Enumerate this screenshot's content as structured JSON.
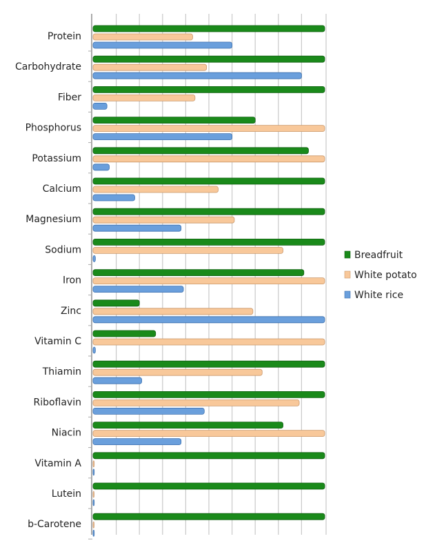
{
  "chart_data": {
    "type": "bar",
    "orientation": "horizontal",
    "title": "",
    "xlabel": "",
    "ylabel": "",
    "xlim": [
      0,
      100
    ],
    "grid": true,
    "legend_position": "right",
    "categories": [
      "Protein",
      "Carbohydrate",
      "Fiber",
      "Phosphorus",
      "Potassium",
      "Calcium",
      "Magnesium",
      "Sodium",
      "Iron",
      "Zinc",
      "Vitamin C",
      "Thiamin",
      "Riboflavin",
      "Niacin",
      "Vitamin A",
      "Lutein",
      "b-Carotene"
    ],
    "series": [
      {
        "name": "Breadfruit",
        "color": "#1a8a1a",
        "values": [
          100,
          100,
          100,
          70,
          93,
          100,
          100,
          100,
          91,
          20,
          27,
          100,
          100,
          82,
          100,
          100,
          100
        ]
      },
      {
        "name": "White potato",
        "color": "#f8c89a",
        "values": [
          43,
          49,
          44,
          100,
          100,
          54,
          61,
          82,
          100,
          69,
          100,
          73,
          89,
          100,
          0.5,
          0.3,
          0.3
        ]
      },
      {
        "name": "White rice",
        "color": "#6a9fdc",
        "values": [
          60,
          90,
          6,
          60,
          7,
          18,
          38,
          1,
          39,
          100,
          1,
          21,
          48,
          38,
          0.5,
          0.5,
          0.5
        ]
      }
    ]
  }
}
